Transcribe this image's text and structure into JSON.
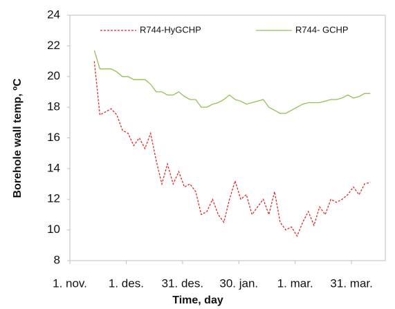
{
  "chart_data": {
    "type": "line",
    "xlabel": "Time, day",
    "ylabel": "Borehole wall temp, ºC",
    "x": [
      13,
      16,
      19,
      22,
      25,
      28,
      31,
      34,
      37,
      40,
      43,
      46,
      49,
      52,
      55,
      58,
      61,
      64,
      67,
      70,
      73,
      76,
      79,
      82,
      85,
      88,
      91,
      94,
      97,
      100,
      103,
      106,
      109,
      112,
      115,
      118,
      121,
      124,
      127,
      130,
      133,
      136,
      139,
      142,
      145,
      148,
      151,
      154,
      157,
      160
    ],
    "series": [
      {
        "name": "R744-HyGCHP",
        "color": "#e02828",
        "line_style": "dashed",
        "values": [
          21,
          17.5,
          17.7,
          17.9,
          17.5,
          16.5,
          16.3,
          15.5,
          16,
          15.3,
          16.3,
          14.5,
          13,
          14.3,
          13,
          13.8,
          12.8,
          13,
          12.5,
          11,
          11.2,
          12,
          11,
          10.5,
          12,
          13.2,
          12,
          12.3,
          11,
          11.5,
          12,
          11,
          12.5,
          10.5,
          10,
          10.2,
          9.6,
          10.5,
          11.2,
          10.3,
          11.5,
          11,
          12,
          11.8,
          12,
          12.3,
          12.8,
          12.3,
          13,
          13.1
        ]
      },
      {
        "name": "R744- GCHP",
        "color": "#92c050",
        "line_style": "solid",
        "values": [
          21.7,
          20.5,
          20.5,
          20.5,
          20.3,
          20,
          20,
          19.8,
          19.8,
          19.8,
          19.5,
          19,
          19,
          18.8,
          18.8,
          19,
          18.7,
          18.5,
          18.5,
          18,
          18,
          18.2,
          18.3,
          18.5,
          18.8,
          18.5,
          18.4,
          18.2,
          18.3,
          18.4,
          18.5,
          18,
          17.8,
          17.6,
          17.6,
          17.8,
          18,
          18.2,
          18.3,
          18.3,
          18.3,
          18.4,
          18.5,
          18.5,
          18.6,
          18.8,
          18.6,
          18.7,
          18.9,
          18.9
        ]
      }
    ],
    "xlim": [
      0,
      168
    ],
    "xticks": [
      {
        "value": 0,
        "label": "1. nov."
      },
      {
        "value": 30,
        "label": "1. des."
      },
      {
        "value": 60,
        "label": "31. des."
      },
      {
        "value": 90,
        "label": "30. jan."
      },
      {
        "value": 120,
        "label": "1. mar."
      },
      {
        "value": 150,
        "label": "31. mar."
      }
    ],
    "ylim": [
      8,
      24
    ],
    "yticks": [
      8,
      10,
      12,
      14,
      16,
      18,
      20,
      22,
      24
    ],
    "grid": false
  }
}
